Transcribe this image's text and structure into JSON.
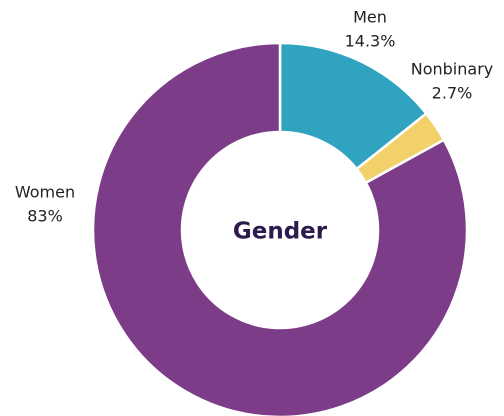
{
  "chart_data": {
    "type": "pie",
    "title": "Gender",
    "categories": [
      "Men",
      "Nonbinary",
      "Women"
    ],
    "values": [
      14.3,
      2.7,
      83
    ],
    "value_labels": [
      "14.3%",
      "2.7%",
      "83%"
    ],
    "colors": [
      "#2fa3bf",
      "#f2d16b",
      "#7d3c87"
    ],
    "donut": true
  }
}
